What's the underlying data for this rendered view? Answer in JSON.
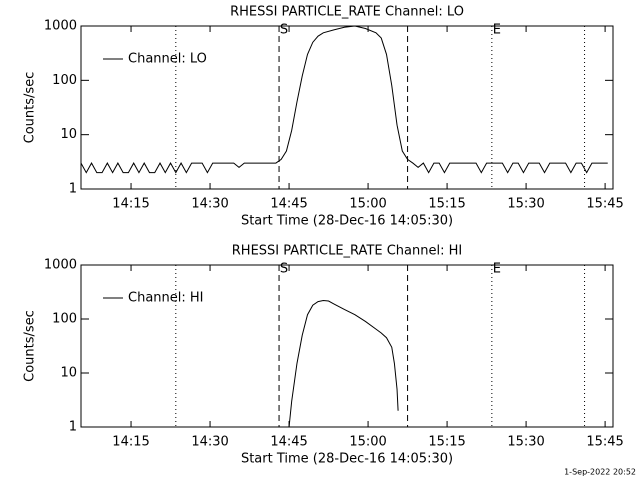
{
  "chart_data": [
    {
      "type": "line",
      "title": "RHESSI PARTICLE_RATE Channel: LO",
      "xlabel": "Start Time (28-Dec-16 14:05:30)",
      "ylabel": "Counts/sec",
      "log_scale": true,
      "legend": "top-left",
      "xlim": [
        0,
        101
      ],
      "xticks": [
        {
          "value": 9.5,
          "label": "14:15"
        },
        {
          "value": 24.5,
          "label": "14:30"
        },
        {
          "value": 39.5,
          "label": "14:45"
        },
        {
          "value": 54.5,
          "label": "15:00"
        },
        {
          "value": 69.5,
          "label": "15:15"
        },
        {
          "value": 84.5,
          "label": "15:30"
        },
        {
          "value": 99.5,
          "label": "15:45"
        }
      ],
      "ylim": [
        1,
        1000
      ],
      "yticks": [
        1,
        10,
        100,
        1000
      ],
      "vlines": [
        {
          "x": 18,
          "style": "dotted"
        },
        {
          "x": 37.6,
          "style": "dashed",
          "label": "S"
        },
        {
          "x": 62,
          "style": "dashed"
        },
        {
          "x": 78,
          "style": "dotted",
          "label": "E"
        },
        {
          "x": 95.6,
          "style": "dotted"
        }
      ],
      "series": [
        {
          "name": "Channel: LO",
          "color": "#000000",
          "x": [
            0,
            1,
            2,
            3,
            4,
            5,
            6,
            7,
            8,
            9,
            10,
            11,
            12,
            13,
            14,
            15,
            16,
            17,
            18,
            19,
            20,
            21,
            22,
            23,
            24,
            25,
            26,
            27,
            28,
            29,
            30,
            31,
            32,
            33,
            34,
            35,
            36,
            37,
            38,
            39,
            40,
            41,
            42,
            43,
            44,
            45,
            46,
            48,
            50,
            52,
            54,
            56,
            57,
            58,
            59,
            60,
            61,
            62,
            63,
            64,
            65,
            66,
            67,
            68,
            69,
            70,
            71,
            72,
            73,
            74,
            75,
            76,
            77,
            78,
            79,
            80,
            81,
            82,
            83,
            84,
            85,
            86,
            87,
            88,
            89,
            90,
            91,
            92,
            93,
            94,
            95,
            96,
            97,
            98,
            99,
            100
          ],
          "values": [
            3,
            2,
            3,
            2,
            2,
            3,
            2,
            3,
            2,
            2,
            3,
            2,
            3,
            2,
            2,
            3,
            2,
            3,
            2,
            3,
            2,
            3,
            3,
            3,
            2,
            3,
            3,
            3,
            3,
            3,
            2.5,
            3,
            3,
            3,
            3,
            3,
            3,
            3,
            3.5,
            5,
            12,
            40,
            120,
            300,
            500,
            650,
            750,
            850,
            950,
            1000,
            900,
            750,
            600,
            300,
            80,
            15,
            5,
            3.5,
            3,
            2.5,
            3,
            2,
            3,
            3,
            2,
            3,
            3,
            3,
            3,
            3,
            3,
            2,
            3,
            3,
            3,
            3,
            2,
            3,
            3,
            2,
            3,
            3,
            3,
            2,
            3,
            3,
            3,
            3,
            2,
            3,
            3,
            2,
            3,
            3,
            3,
            3
          ]
        }
      ]
    },
    {
      "type": "line",
      "title": "RHESSI PARTICLE_RATE Channel: HI",
      "xlabel": "Start Time (28-Dec-16 14:05:30)",
      "ylabel": "Counts/sec",
      "log_scale": true,
      "legend": "top-left",
      "xlim": [
        0,
        101
      ],
      "xticks": [
        {
          "value": 9.5,
          "label": "14:15"
        },
        {
          "value": 24.5,
          "label": "14:30"
        },
        {
          "value": 39.5,
          "label": "14:45"
        },
        {
          "value": 54.5,
          "label": "15:00"
        },
        {
          "value": 69.5,
          "label": "15:15"
        },
        {
          "value": 84.5,
          "label": "15:30"
        },
        {
          "value": 99.5,
          "label": "15:45"
        }
      ],
      "ylim": [
        1,
        1000
      ],
      "yticks": [
        1,
        10,
        100,
        1000
      ],
      "vlines": [
        {
          "x": 18,
          "style": "dotted"
        },
        {
          "x": 37.6,
          "style": "dashed",
          "label": "S"
        },
        {
          "x": 62,
          "style": "dashed"
        },
        {
          "x": 78,
          "style": "dotted",
          "label": "E"
        },
        {
          "x": 95.6,
          "style": "dotted"
        }
      ],
      "series": [
        {
          "name": "Channel: HI",
          "color": "#000000",
          "x": [
            39.5,
            40,
            41,
            42,
            43,
            44,
            45,
            46,
            47,
            48,
            50,
            52,
            54,
            56,
            57,
            58,
            59,
            59.5,
            60,
            60.2
          ],
          "values": [
            1,
            3,
            15,
            50,
            120,
            180,
            210,
            220,
            215,
            190,
            150,
            120,
            90,
            65,
            55,
            45,
            30,
            15,
            5,
            2
          ]
        }
      ]
    }
  ],
  "footer": "1-Sep-2022 20:52"
}
